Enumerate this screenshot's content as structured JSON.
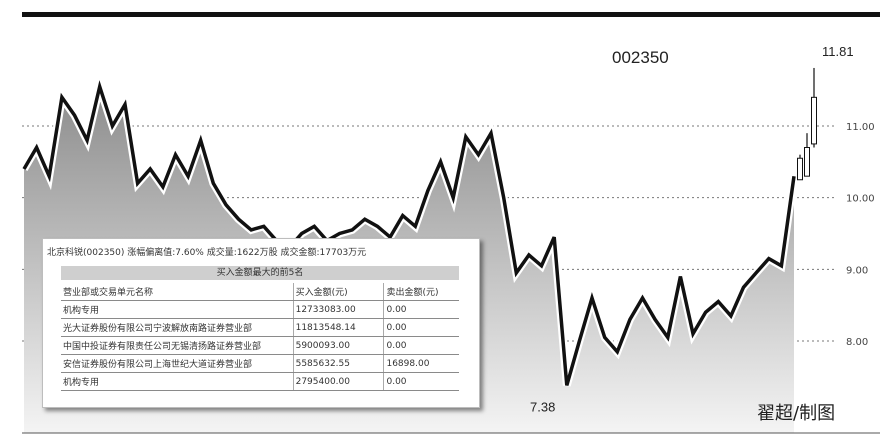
{
  "chart_data": {
    "type": "line",
    "title": "002350",
    "xlabel": "",
    "ylabel": "",
    "ylim": [
      7.0,
      12.0
    ],
    "y_ticks": [
      "11.00",
      "10.00",
      "9.00",
      "8.00"
    ],
    "y_tick_values": [
      11.0,
      10.0,
      9.0,
      8.0
    ],
    "grid": true,
    "annotations": [
      {
        "text": "11.81",
        "value": 11.81
      },
      {
        "text": "7.38",
        "value": 7.38
      }
    ],
    "series": [
      {
        "values": [
          10.4,
          10.7,
          10.3,
          11.4,
          11.15,
          10.8,
          11.55,
          11.0,
          11.3,
          10.2,
          10.4,
          10.15,
          10.6,
          10.3,
          10.8,
          10.2,
          9.9,
          9.7,
          9.55,
          9.6,
          9.4,
          9.3,
          9.5,
          9.6,
          9.4,
          9.5,
          9.55,
          9.7,
          9.6,
          9.45,
          9.75,
          9.6,
          10.1,
          10.5,
          10.0,
          10.85,
          10.6,
          10.9,
          10.0,
          8.95,
          9.2,
          9.05,
          9.45,
          7.38,
          8.0,
          8.6,
          8.05,
          7.85,
          8.3,
          8.6,
          8.3,
          8.05,
          8.9,
          8.1,
          8.4,
          8.55,
          8.35,
          8.75,
          8.95,
          9.15,
          9.05,
          10.3
        ]
      }
    ],
    "candles": [
      {
        "open": 10.25,
        "close": 10.55,
        "high": 10.6,
        "low": 10.25
      },
      {
        "open": 10.3,
        "close": 10.7,
        "high": 10.9,
        "low": 10.3
      },
      {
        "open": 10.75,
        "close": 11.4,
        "high": 11.81,
        "low": 10.7
      }
    ]
  },
  "labels": {
    "code": "002350",
    "credit": "翟超/制图"
  },
  "table": {
    "header": "北京科锐(002350)  涨幅偏离值:7.60%  成交量:1622万股  成交金额:17703万元",
    "subheader": "买入金额最大的前5名",
    "rows": [
      [
        "营业部或交易单元名称",
        "买入金额(元)",
        "卖出金额(元)"
      ],
      [
        "机构专用",
        "12733083.00",
        "0.00"
      ],
      [
        "光大证券股份有限公司宁波解放南路证券营业部",
        "11813548.14",
        "0.00"
      ],
      [
        "中国中投证券有限责任公司无锡清扬路证券营业部",
        "5900093.00",
        "0.00"
      ],
      [
        "安信证券股份有限公司上海世纪大道证券营业部",
        "5585632.55",
        "16898.00"
      ],
      [
        "机构专用",
        "2795400.00",
        "0.00"
      ]
    ]
  }
}
